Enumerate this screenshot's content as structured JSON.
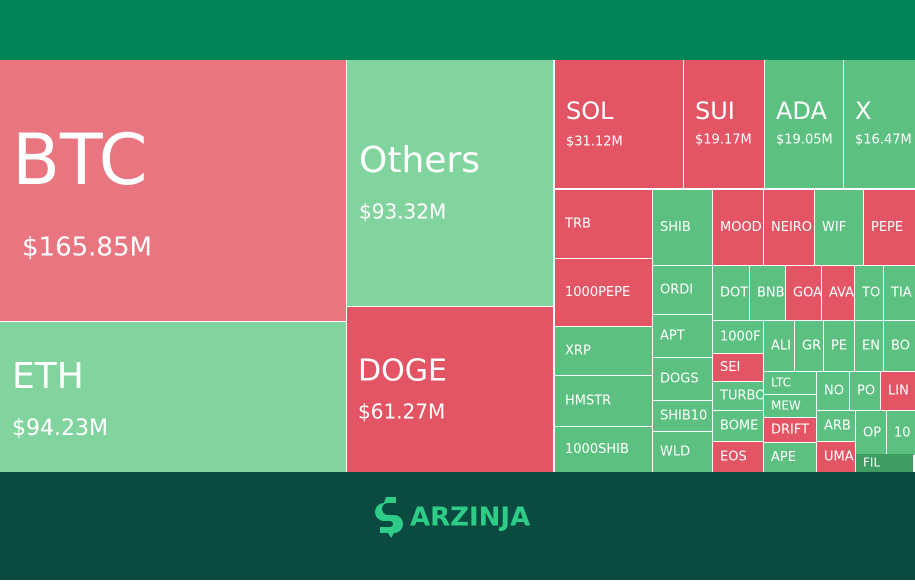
{
  "treemap": {
    "tiles": [
      {
        "label": "BTC",
        "value_label": "$165.85M",
        "color": "#e97580"
      },
      {
        "label": "ETH",
        "value_label": "$94.23M",
        "color": "#82d49f"
      },
      {
        "label": "Others",
        "value_label": "$93.32M",
        "color": "#82d49f"
      },
      {
        "label": "DOGE",
        "value_label": "$61.27M",
        "color": "#e35564"
      },
      {
        "label": "SOL",
        "value_label": "$31.12M",
        "color": "#e35564"
      },
      {
        "label": "SUI",
        "value_label": "$19.17M",
        "color": "#e35564"
      },
      {
        "label": "ADA",
        "value_label": "$19.05M",
        "color": "#5cc081"
      },
      {
        "label": "X",
        "value_label": "$16.47M",
        "color": "#5cc081"
      },
      {
        "label": "TRB",
        "color": "#e35564"
      },
      {
        "label": "1000PEPE",
        "color": "#e35564"
      },
      {
        "label": "XRP",
        "color": "#5cc081"
      },
      {
        "label": "HMSTR",
        "color": "#5cc081"
      },
      {
        "label": "1000SHIB",
        "color": "#5cc081"
      },
      {
        "label": "SHIB",
        "color": "#5cc081"
      },
      {
        "label": "ORDI",
        "color": "#5cc081"
      },
      {
        "label": "APT",
        "color": "#5cc081"
      },
      {
        "label": "DOGS",
        "color": "#5cc081"
      },
      {
        "label": "SHIB10",
        "color": "#5cc081"
      },
      {
        "label": "WLD",
        "color": "#5cc081"
      },
      {
        "label": "MOOD",
        "color": "#e35564"
      },
      {
        "label": "NEIRO",
        "color": "#e35564"
      },
      {
        "label": "WIF",
        "color": "#5cc081"
      },
      {
        "label": "PEPE",
        "color": "#e35564"
      },
      {
        "label": "DOT",
        "color": "#5cc081"
      },
      {
        "label": "BNB",
        "color": "#5cc081"
      },
      {
        "label": "GOA",
        "color": "#e35564"
      },
      {
        "label": "AVA",
        "color": "#e35564"
      },
      {
        "label": "TO",
        "color": "#5cc081"
      },
      {
        "label": "TIA",
        "color": "#5cc081"
      },
      {
        "label": "1000F",
        "color": "#5cc081"
      },
      {
        "label": "SEI",
        "color": "#e35564"
      },
      {
        "label": "TURBO",
        "color": "#5cc081"
      },
      {
        "label": "BOME",
        "color": "#5cc081"
      },
      {
        "label": "EOS",
        "color": "#e35564"
      },
      {
        "label": "ALI",
        "color": "#5cc081"
      },
      {
        "label": "GR",
        "color": "#5cc081"
      },
      {
        "label": "PE",
        "color": "#5cc081"
      },
      {
        "label": "EN",
        "color": "#5cc081"
      },
      {
        "label": "BO",
        "color": "#5cc081"
      },
      {
        "label": "LTC",
        "color": "#5cc081"
      },
      {
        "label": "MEW",
        "color": "#5cc081"
      },
      {
        "label": "DRIFT",
        "color": "#e35564"
      },
      {
        "label": "APE",
        "color": "#5cc081"
      },
      {
        "label": "NO",
        "color": "#5cc081"
      },
      {
        "label": "PO",
        "color": "#5cc081"
      },
      {
        "label": "LIN",
        "color": "#e35564"
      },
      {
        "label": "ARB",
        "color": "#5cc081"
      },
      {
        "label": "OP",
        "color": "#5cc081"
      },
      {
        "label": "10",
        "color": "#5cc081"
      },
      {
        "label": "UMA",
        "color": "#e35564"
      },
      {
        "label": "FIL",
        "color": "#3f9c63"
      }
    ]
  },
  "brand": {
    "name": "ARZINJA"
  }
}
